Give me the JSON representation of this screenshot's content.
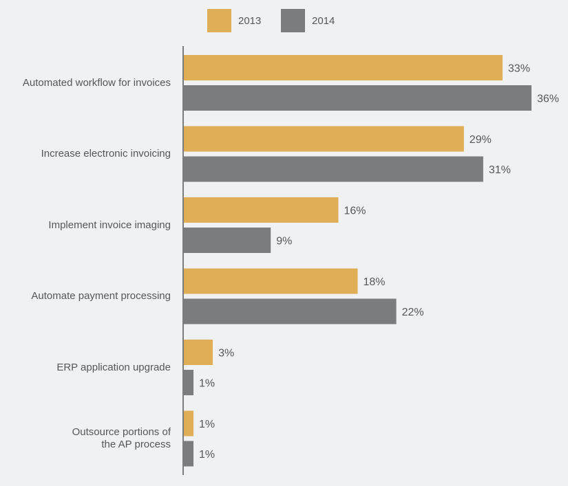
{
  "chart_data": {
    "type": "bar",
    "orientation": "horizontal",
    "title": "",
    "xlabel": "",
    "ylabel": "",
    "xlim": [
      0,
      36
    ],
    "grid": false,
    "legend_position": "top-center",
    "categories": [
      "Automated workflow for invoices",
      "Increase electronic invoicing",
      "Implement invoice imaging",
      "Automate payment processing",
      "ERP application upgrade",
      "Outsource portions of\nthe AP process"
    ],
    "series": [
      {
        "name": "2013",
        "color": "#dfae57",
        "values": [
          33,
          29,
          16,
          18,
          3,
          1
        ],
        "labels": [
          "33%",
          "29%",
          "16%",
          "18%",
          "3%",
          "1%"
        ]
      },
      {
        "name": "2014",
        "color": "#7b7c7e",
        "values": [
          36,
          31,
          9,
          22,
          1,
          1
        ],
        "labels": [
          "36%",
          "31%",
          "9%",
          "22%",
          "1%",
          "1%"
        ]
      }
    ]
  }
}
